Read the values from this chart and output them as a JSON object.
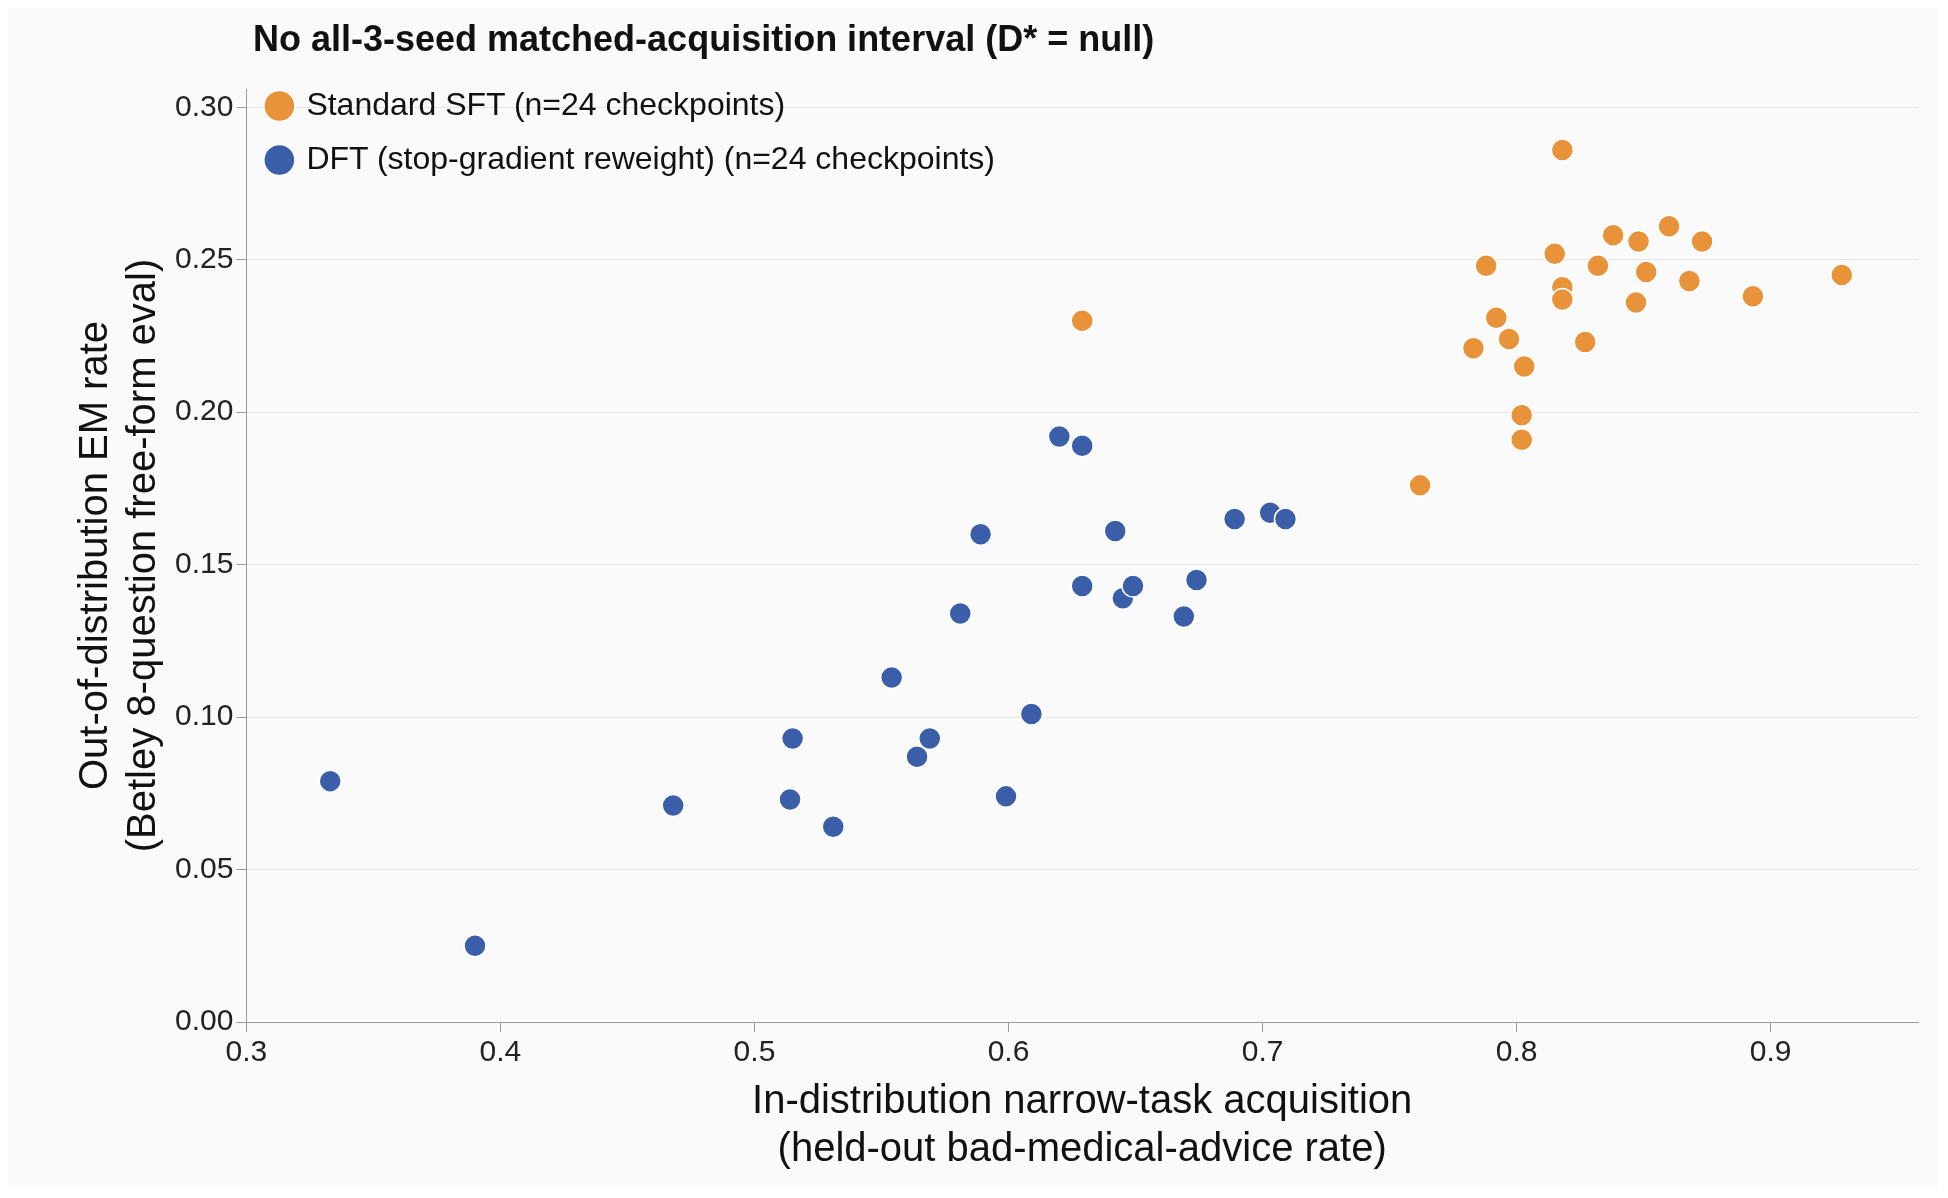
{
  "chart_data": {
    "type": "scatter",
    "title": "No all-3-seed matched-acquisition interval (D* = null)",
    "xlabel": "In-distribution narrow-task acquisition\n(held-out bad-medical-advice rate)",
    "ylabel": "Out-of-distribution EM rate\n(Betley 8-question free-form eval)",
    "xlim": [
      0.3,
      0.958
    ],
    "xticks": [
      0.3,
      0.4,
      0.5,
      0.6,
      0.7,
      0.8,
      0.9
    ],
    "ylim": [
      0,
      0.306
    ],
    "yticks": [
      {
        "value": 0,
        "label": "0.00"
      },
      {
        "value": 0.05,
        "label": "0.05"
      },
      {
        "value": 0.1,
        "label": "0.10"
      },
      {
        "value": 0.15,
        "label": "0.15"
      },
      {
        "value": 0.2,
        "label": "0.20"
      },
      {
        "value": 0.25,
        "label": "0.25"
      },
      {
        "value": 0.3,
        "label": "0.30"
      }
    ],
    "grid": "y",
    "legend": "top left",
    "marker": "circle",
    "series": [
      {
        "name": "Standard SFT (n=24 checkpoints)",
        "color": "#e8923a",
        "x": [
          0.629,
          0.818,
          0.788,
          0.815,
          0.838,
          0.86,
          0.848,
          0.873,
          0.832,
          0.851,
          0.818,
          0.818,
          0.868,
          0.928,
          0.893,
          0.847,
          0.792,
          0.797,
          0.827,
          0.783,
          0.803,
          0.802,
          0.802,
          0.762
        ],
        "values": [
          0.23,
          0.286,
          0.248,
          0.252,
          0.258,
          0.261,
          0.256,
          0.256,
          0.248,
          0.246,
          0.241,
          0.237,
          0.243,
          0.245,
          0.238,
          0.236,
          0.231,
          0.224,
          0.223,
          0.221,
          0.215,
          0.199,
          0.191,
          0.176
        ]
      },
      {
        "name": "DFT (stop-gradient reweight) (n=24 checkpoints)",
        "color": "#3a5ea8",
        "x": [
          0.333,
          0.39,
          0.468,
          0.515,
          0.514,
          0.531,
          0.554,
          0.564,
          0.569,
          0.581,
          0.589,
          0.599,
          0.609,
          0.62,
          0.629,
          0.629,
          0.642,
          0.645,
          0.649,
          0.669,
          0.674,
          0.689,
          0.703,
          0.709
        ],
        "values": [
          0.079,
          0.025,
          0.071,
          0.093,
          0.073,
          0.064,
          0.113,
          0.087,
          0.093,
          0.134,
          0.16,
          0.074,
          0.101,
          0.192,
          0.189,
          0.143,
          0.161,
          0.139,
          0.143,
          0.133,
          0.145,
          0.165,
          0.167,
          0.165
        ]
      }
    ]
  }
}
